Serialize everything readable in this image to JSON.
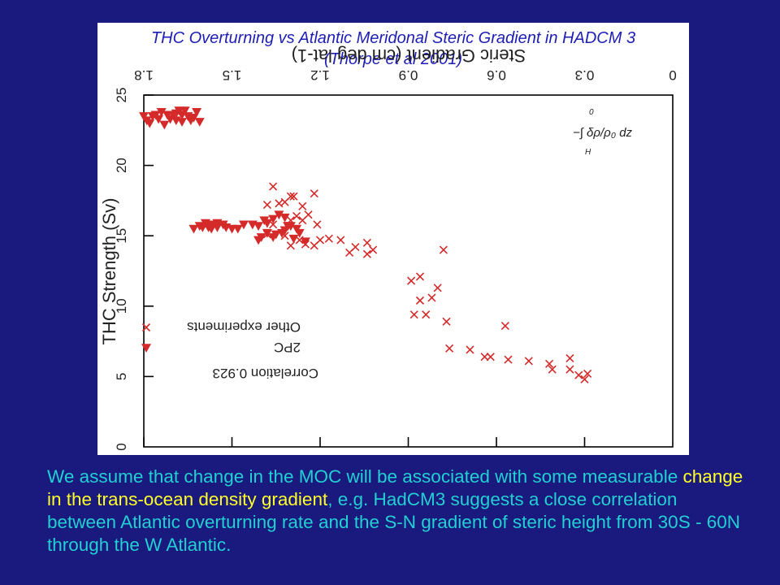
{
  "chart_data": {
    "type": "scatter",
    "title": "THC Overturning vs Atlantic Meridonal Steric Gradient in HADCM 3",
    "subtitle": "(Thorpe et al 2001)",
    "xlabel": "Steric Gradient (cm deg lat-1)",
    "ylabel": "THC Strength (Sv)",
    "x_ticks": [
      "0",
      "0.3",
      "0.6",
      "0.9",
      "1.2",
      "1.5",
      "1.8"
    ],
    "y_ticks": [
      "0",
      "5",
      "10",
      "15",
      "20",
      "25"
    ],
    "xlim": [
      0,
      1.8
    ],
    "ylim": [
      0,
      25
    ],
    "rendered_rotated_180": true,
    "legend": {
      "placement": "lower-left",
      "entries": [
        {
          "label": "Other experiments",
          "marker": "x",
          "color": "#d42a2a"
        },
        {
          "label": "2PC",
          "marker": "triangle-down",
          "color": "#d42a2a"
        }
      ],
      "correlation": "Correlation 0.923"
    },
    "annotation_formula": "−∫ δρ/ρ₀ dz",
    "annotation_formula_lower": "H",
    "annotation_formula_upper": "0",
    "series": [
      {
        "name": "Other experiments",
        "marker": "x",
        "points": [
          [
            0.29,
            5.2
          ],
          [
            0.3,
            4.8
          ],
          [
            0.32,
            5.1
          ],
          [
            0.35,
            5.5
          ],
          [
            0.35,
            6.3
          ],
          [
            0.41,
            5.5
          ],
          [
            0.42,
            5.9
          ],
          [
            0.49,
            6.1
          ],
          [
            0.56,
            6.2
          ],
          [
            0.62,
            6.4
          ],
          [
            0.64,
            6.4
          ],
          [
            0.69,
            6.9
          ],
          [
            0.76,
            7.0
          ],
          [
            0.57,
            8.6
          ],
          [
            0.77,
            8.9
          ],
          [
            0.84,
            9.4
          ],
          [
            0.88,
            9.4
          ],
          [
            0.82,
            10.6
          ],
          [
            0.86,
            10.4
          ],
          [
            0.8,
            11.3
          ],
          [
            0.86,
            12.1
          ],
          [
            0.89,
            11.8
          ],
          [
            0.78,
            14.0
          ],
          [
            1.02,
            14.0
          ],
          [
            1.04,
            13.7
          ],
          [
            1.08,
            14.2
          ],
          [
            1.1,
            13.8
          ],
          [
            1.04,
            14.5
          ],
          [
            1.13,
            14.7
          ],
          [
            1.17,
            14.8
          ],
          [
            1.2,
            14.7
          ],
          [
            1.22,
            14.3
          ],
          [
            1.25,
            14.4
          ],
          [
            1.27,
            14.7
          ],
          [
            1.3,
            14.3
          ],
          [
            1.32,
            15.0
          ],
          [
            1.36,
            15.8
          ],
          [
            1.38,
            15.1
          ],
          [
            1.21,
            15.8
          ],
          [
            1.24,
            16.5
          ],
          [
            1.26,
            16.1
          ],
          [
            1.28,
            16.4
          ],
          [
            1.3,
            16.1
          ],
          [
            1.22,
            18.0
          ],
          [
            1.26,
            17.1
          ],
          [
            1.29,
            17.8
          ],
          [
            1.32,
            17.4
          ],
          [
            1.38,
            17.2
          ],
          [
            1.3,
            17.8
          ],
          [
            1.34,
            17.3
          ],
          [
            1.36,
            18.5
          ]
        ]
      },
      {
        "name": "2PC",
        "marker": "triangle-down",
        "points": [
          [
            1.25,
            14.6
          ],
          [
            1.29,
            14.8
          ],
          [
            1.27,
            15.2
          ],
          [
            1.3,
            15.7
          ],
          [
            1.31,
            15.7
          ],
          [
            1.32,
            15.4
          ],
          [
            1.33,
            15.2
          ],
          [
            1.35,
            15.1
          ],
          [
            1.36,
            14.9
          ],
          [
            1.38,
            15.2
          ],
          [
            1.4,
            14.9
          ],
          [
            1.41,
            14.7
          ],
          [
            1.28,
            15.5
          ],
          [
            1.31,
            15.7
          ],
          [
            1.32,
            16.3
          ],
          [
            1.34,
            16.5
          ],
          [
            1.36,
            16.2
          ],
          [
            1.38,
            15.9
          ],
          [
            1.39,
            16.1
          ],
          [
            1.41,
            15.7
          ],
          [
            1.43,
            15.8
          ],
          [
            1.46,
            15.8
          ],
          [
            1.48,
            15.5
          ],
          [
            1.5,
            15.5
          ],
          [
            1.52,
            15.6
          ],
          [
            1.53,
            15.8
          ],
          [
            1.55,
            15.6
          ],
          [
            1.57,
            15.5
          ],
          [
            1.58,
            15.6
          ],
          [
            1.6,
            15.6
          ],
          [
            1.61,
            15.7
          ],
          [
            1.63,
            15.5
          ],
          [
            1.57,
            15.8
          ],
          [
            1.59,
            15.9
          ],
          [
            1.55,
            15.9
          ],
          [
            1.61,
            23.1
          ],
          [
            1.63,
            23.4
          ],
          [
            1.65,
            23.5
          ],
          [
            1.67,
            23.6
          ],
          [
            1.68,
            23.9
          ],
          [
            1.69,
            23.7
          ],
          [
            1.7,
            23.6
          ],
          [
            1.71,
            23.3
          ],
          [
            1.73,
            22.9
          ],
          [
            1.75,
            23.3
          ],
          [
            1.76,
            23.6
          ],
          [
            1.77,
            23.5
          ],
          [
            1.79,
            23.2
          ],
          [
            1.8,
            23.5
          ],
          [
            1.78,
            23.0
          ],
          [
            1.72,
            23.6
          ],
          [
            1.74,
            23.8
          ],
          [
            1.66,
            23.9
          ],
          [
            1.64,
            23.2
          ],
          [
            1.62,
            23.8
          ],
          [
            1.67,
            23.1
          ],
          [
            1.69,
            23.2
          ]
        ]
      }
    ]
  },
  "caption": {
    "part1": "We assume that change in the MOC will be associated with some measurable ",
    "highlight": "change in the trans-ocean density gradient",
    "part2": ",  e.g. HadCM3 suggests a close correlation between Atlantic overturning rate and the S-N gradient of steric height from 30S - 60N through the W Atlantic."
  },
  "colors": {
    "background": "#1a1a7e",
    "title": "#1e1eb4",
    "marker": "#d42a2a",
    "caption": "#22cfd2",
    "caption_highlight": "#ffff2a"
  }
}
